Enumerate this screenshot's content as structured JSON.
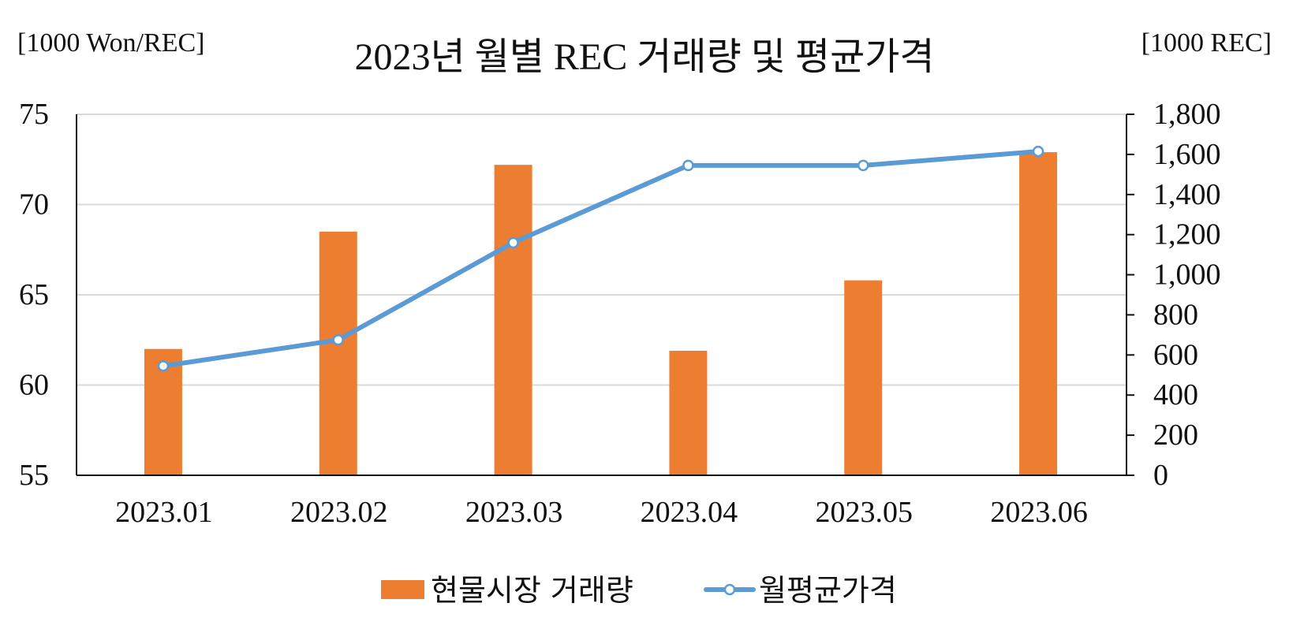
{
  "chart_data": {
    "type": "bar",
    "title": "2023년 월별 REC 거래량 및 평균가격",
    "left_axis_label": "[1000 Won/REC]",
    "right_axis_label": "[1000 REC]",
    "categories": [
      "2023.01",
      "2023.02",
      "2023.03",
      "2023.04",
      "2023.05",
      "2023.06"
    ],
    "series": [
      {
        "name": "현물시장 거래량",
        "type": "bar",
        "axis": "left",
        "color": "#ED7D31",
        "values": [
          62.0,
          68.5,
          72.2,
          61.9,
          65.8,
          72.9
        ]
      },
      {
        "name": "월평균가격",
        "type": "line",
        "axis": "right",
        "color": "#5B9BD5",
        "marker": "circle",
        "values": [
          545,
          675,
          1160,
          1545,
          1545,
          1615
        ]
      }
    ],
    "y_left": {
      "lim": [
        55,
        75
      ],
      "ticks": [
        75,
        70,
        65,
        60,
        55
      ],
      "tick_labels": [
        "75",
        "70",
        "65",
        "60",
        "55"
      ]
    },
    "y_right": {
      "lim": [
        0,
        1800
      ],
      "ticks": [
        1800,
        1600,
        1400,
        1200,
        1000,
        800,
        600,
        400,
        200,
        0
      ],
      "tick_labels": [
        "1,800",
        "1,600",
        "1,400",
        "1,200",
        "1,000",
        "800",
        "600",
        "400",
        "200",
        "0"
      ]
    },
    "grid": true,
    "legend_position": "bottom-center"
  }
}
